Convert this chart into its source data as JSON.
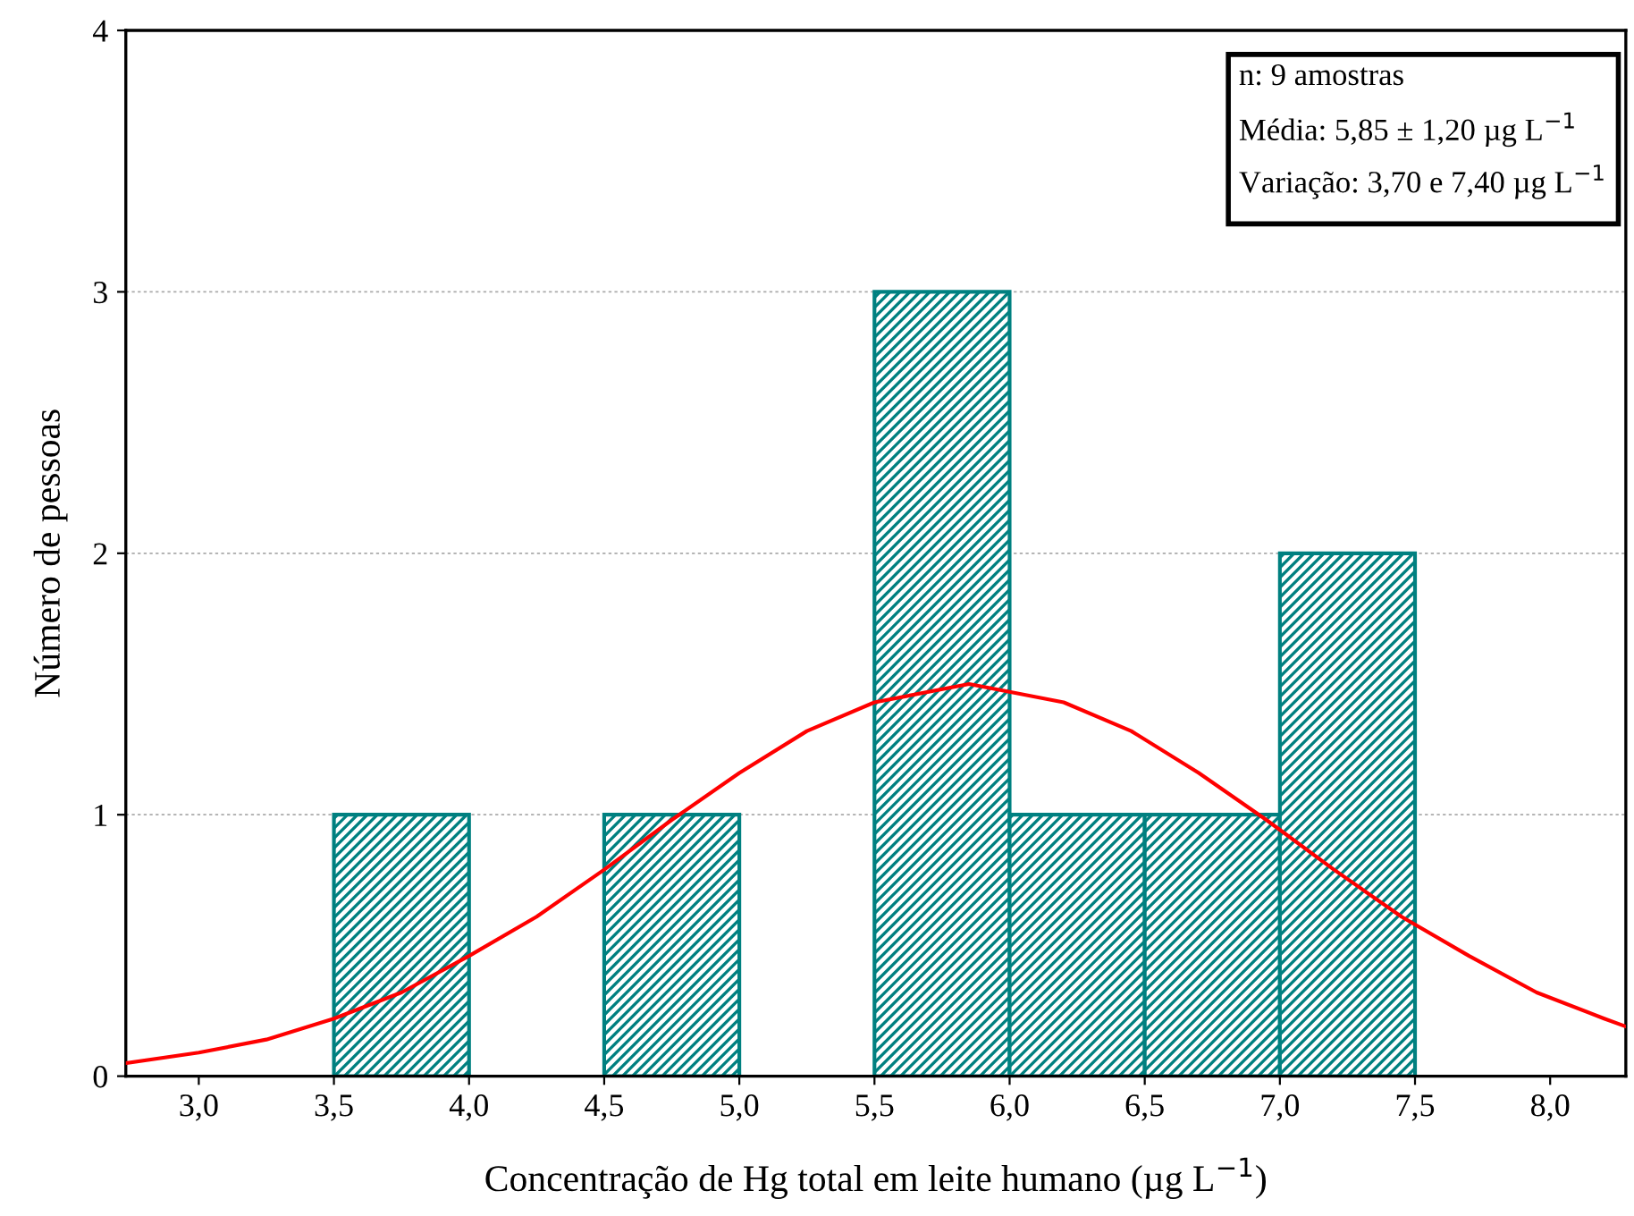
{
  "chart_data": {
    "type": "histogram",
    "xlabel": "Concentração de Hg total em leite humano (µg L$^{−1}$)",
    "ylabel": "Número de pessoas",
    "bins": [
      3.5,
      4.0,
      4.5,
      5.0,
      5.5,
      6.0,
      6.5,
      7.0,
      7.5
    ],
    "values": [
      1,
      0,
      1,
      0,
      3,
      1,
      1,
      2
    ],
    "color": "#008080",
    "series": [
      {
        "type": "line",
        "color": "#ff0000",
        "x": [
          2.73,
          3.0,
          3.25,
          3.5,
          3.75,
          4.0,
          4.25,
          4.5,
          4.75,
          5.0,
          5.25,
          5.5,
          5.85,
          6.2,
          6.45,
          6.7,
          6.95,
          7.2,
          7.45,
          7.7,
          7.95,
          8.2,
          8.28
        ],
        "values": [
          0.05,
          0.09,
          0.14,
          0.22,
          0.32,
          0.46,
          0.61,
          0.79,
          0.98,
          1.16,
          1.32,
          1.43,
          1.5,
          1.43,
          1.32,
          1.16,
          0.98,
          0.79,
          0.61,
          0.46,
          0.32,
          0.22,
          0.19
        ]
      }
    ],
    "annotations": [
      "n: 9 amostras",
      "Média: 5,85 ± 1,20 µg L$^{−1}$",
      "Variação: 3,70 e 7,40 µg L$^{−1}$"
    ],
    "xlim": [
      2.73,
      8.28
    ],
    "xticks": [
      {
        "value": 3.0,
        "label": "3,0"
      },
      {
        "value": 3.5,
        "label": "3,5"
      },
      {
        "value": 4.0,
        "label": "4,0"
      },
      {
        "value": 4.5,
        "label": "4,5"
      },
      {
        "value": 5.0,
        "label": "5,0"
      },
      {
        "value": 5.5,
        "label": "5,5"
      },
      {
        "value": 6.0,
        "label": "6,0"
      },
      {
        "value": 6.5,
        "label": "6,5"
      },
      {
        "value": 7.0,
        "label": "7,0"
      },
      {
        "value": 7.5,
        "label": "7,5"
      },
      {
        "value": 8.0,
        "label": "8,0"
      }
    ],
    "ylim": [
      0,
      4
    ],
    "yticks": [
      0,
      1,
      2,
      3,
      4
    ],
    "grid": "y"
  }
}
